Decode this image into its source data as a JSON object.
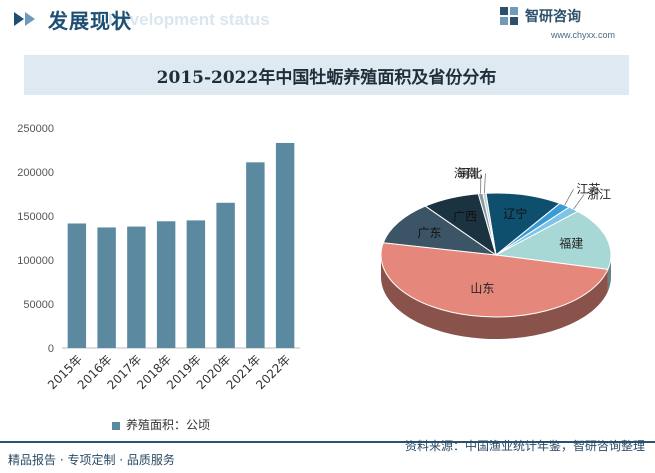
{
  "header": {
    "title": "发展现状",
    "subtitle": "Development status",
    "brand_name": "智研咨询",
    "brand_url": "www.chyxx.com"
  },
  "chart_title": "2015-2022年中国牡蛎养殖面积及省份分布",
  "chart_data": [
    {
      "type": "bar",
      "categories": [
        "2015年",
        "2016年",
        "2017年",
        "2018年",
        "2019年",
        "2020年",
        "2021年",
        "2022年"
      ],
      "series": [
        {
          "name": "养殖面积：公顷",
          "values": [
            141500,
            137000,
            138000,
            144000,
            145000,
            165000,
            211000,
            233000
          ]
        }
      ],
      "ylim": [
        0,
        250000
      ],
      "yticks": [
        0,
        50000,
        100000,
        150000,
        200000,
        250000
      ],
      "bar_color": "#5b8aa0",
      "legend": "bottom"
    },
    {
      "type": "pie",
      "labels": [
        "辽宁",
        "江苏",
        "浙江",
        "福建",
        "山东",
        "广东",
        "广西",
        "海南",
        "河北"
      ],
      "values": [
        10.0,
        1.5,
        1.5,
        15.0,
        46.0,
        10.5,
        7.5,
        0.6,
        0.4
      ],
      "colors": [
        "#0f4f6e",
        "#3a9bd5",
        "#7fc4e6",
        "#a8d8d6",
        "#e5887b",
        "#3b5566",
        "#1b3341",
        "#8a9aa6",
        "#c7ced4"
      ]
    }
  ],
  "legend": {
    "label": "养殖面积：公顷"
  },
  "footer": {
    "left": "精品报告 · 专项定制 · 品质服务",
    "right": "资料来源：中国渔业统计年鉴，智研咨询整理",
    "logo_text": "智研咨询"
  }
}
